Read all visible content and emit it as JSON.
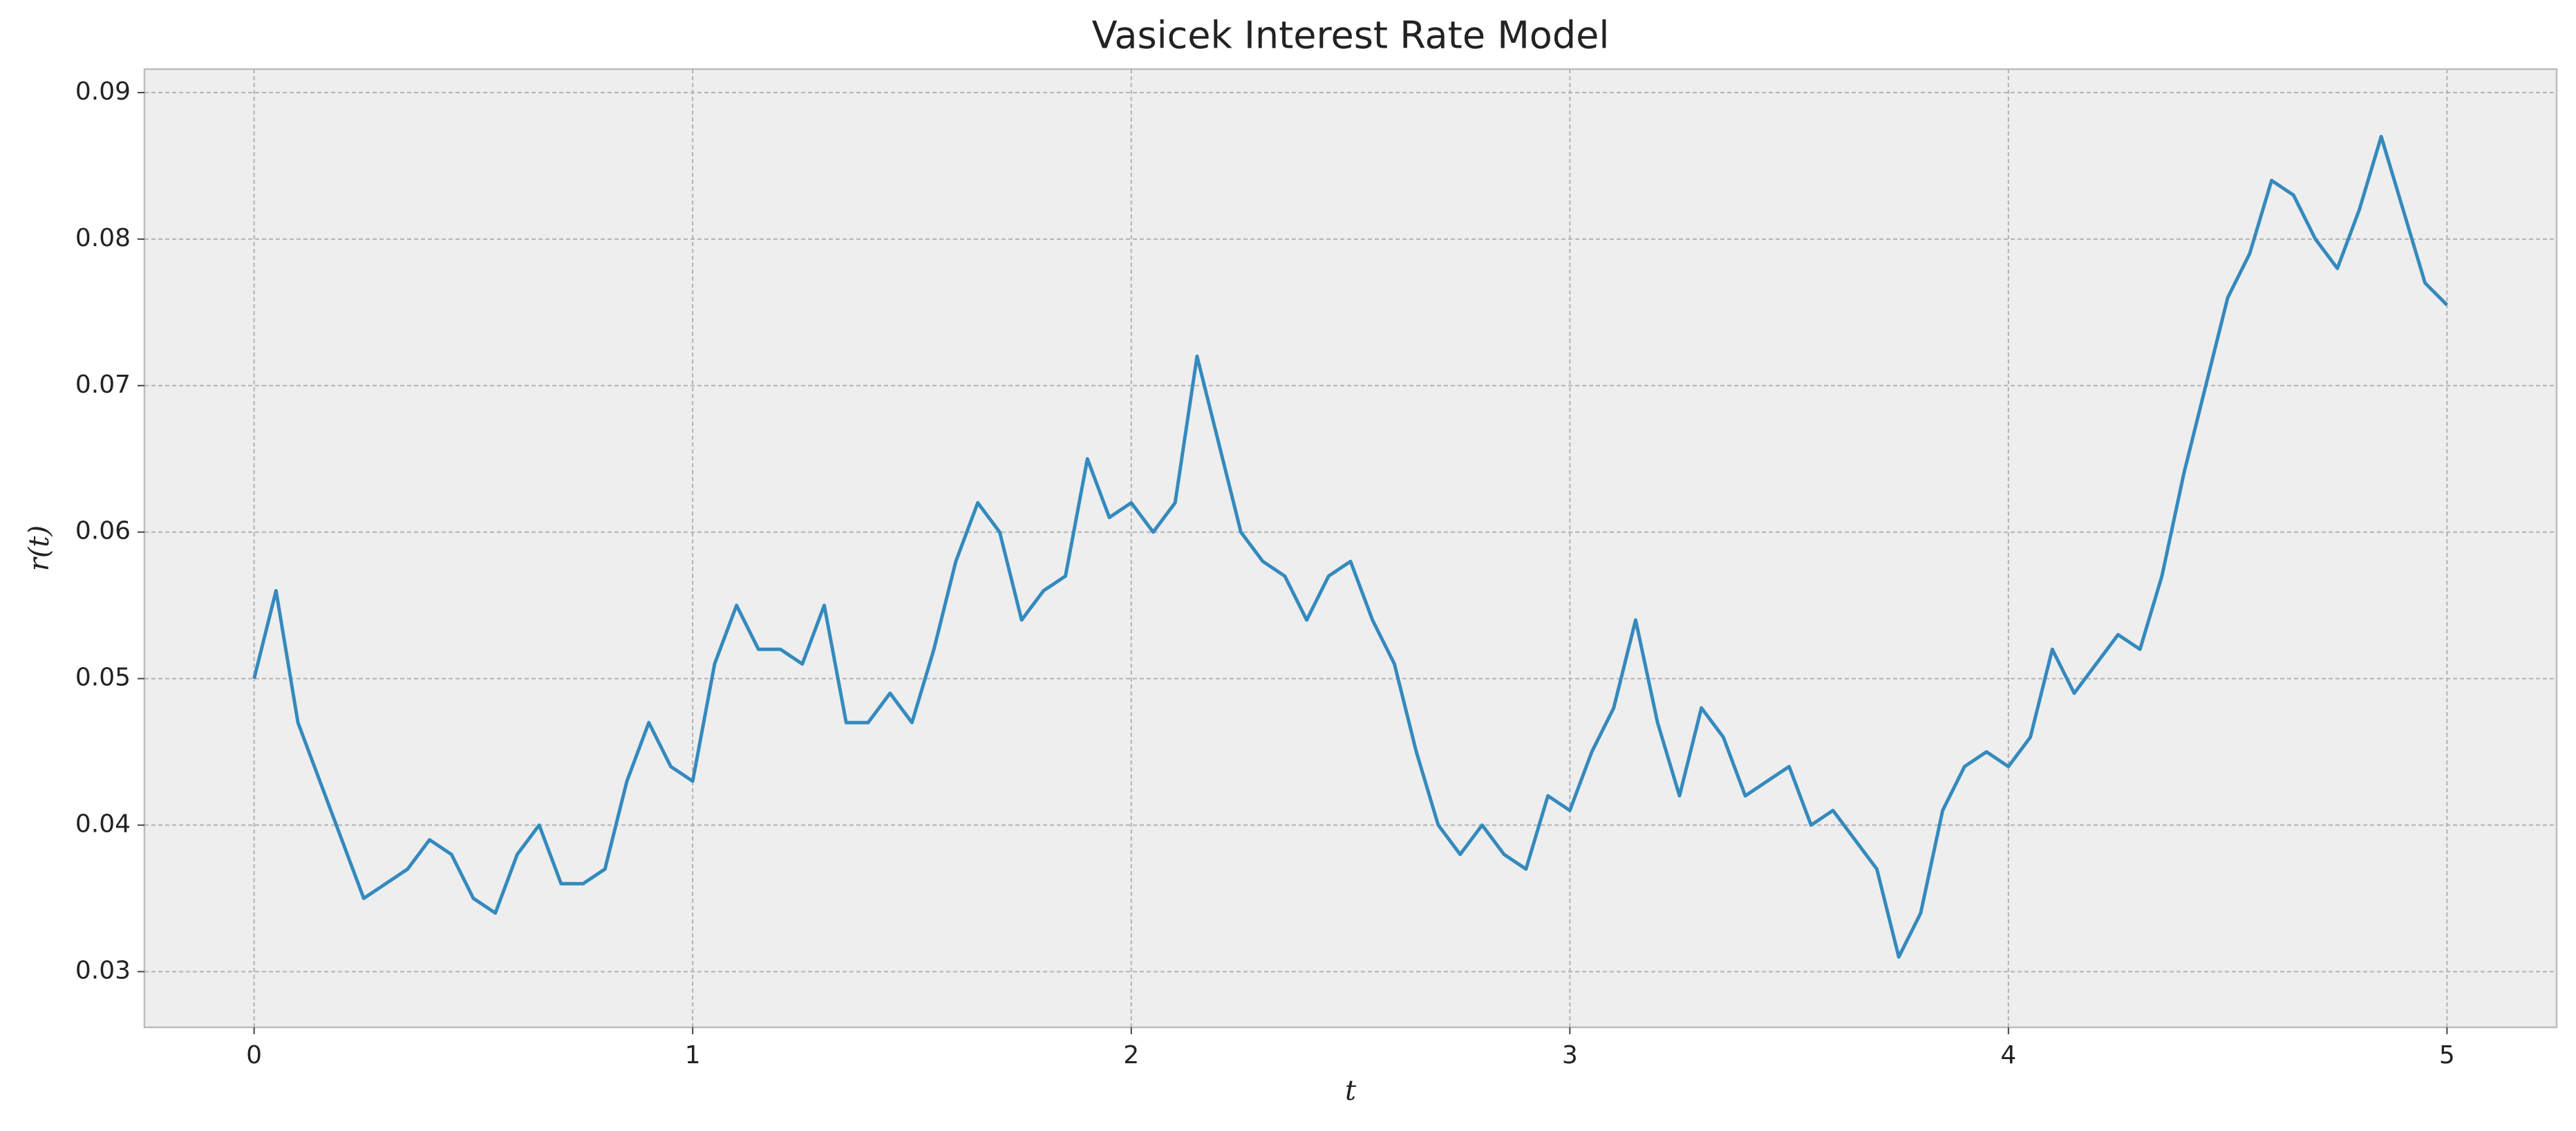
{
  "chart_data": {
    "type": "line",
    "title": "Vasicek Interest Rate Model",
    "x_label": "t",
    "y_label": "r(t)",
    "x": [
      0,
      0.05,
      0.1,
      0.15,
      0.2,
      0.25,
      0.3,
      0.35,
      0.4,
      0.45,
      0.5,
      0.55,
      0.6,
      0.65,
      0.7,
      0.75,
      0.8,
      0.85,
      0.9,
      0.95,
      1,
      1.05,
      1.1,
      1.15,
      1.2,
      1.25,
      1.3,
      1.35,
      1.4,
      1.45,
      1.5,
      1.55,
      1.6,
      1.65,
      1.7,
      1.75,
      1.8,
      1.85,
      1.9,
      1.95,
      2,
      2.05,
      2.1,
      2.15,
      2.2,
      2.25,
      2.3,
      2.35,
      2.4,
      2.45,
      2.5,
      2.55,
      2.6,
      2.65,
      2.7,
      2.75,
      2.8,
      2.85,
      2.9,
      2.95,
      3,
      3.05,
      3.1,
      3.15,
      3.2,
      3.25,
      3.3,
      3.35,
      3.4,
      3.45,
      3.5,
      3.55,
      3.6,
      3.65,
      3.7,
      3.75,
      3.8,
      3.85,
      3.9,
      3.95,
      4,
      4.05,
      4.1,
      4.15,
      4.2,
      4.25,
      4.3,
      4.35,
      4.4,
      4.45,
      4.5,
      4.55,
      4.6,
      4.65,
      4.7,
      4.75,
      4.8,
      4.85,
      4.9,
      4.95,
      5
    ],
    "values": [
      0.05,
      0.056,
      0.047,
      0.043,
      0.039,
      0.035,
      0.036,
      0.037,
      0.039,
      0.038,
      0.035,
      0.034,
      0.038,
      0.04,
      0.036,
      0.036,
      0.037,
      0.043,
      0.047,
      0.044,
      0.043,
      0.051,
      0.055,
      0.052,
      0.052,
      0.051,
      0.055,
      0.047,
      0.047,
      0.049,
      0.047,
      0.052,
      0.058,
      0.062,
      0.06,
      0.054,
      0.056,
      0.057,
      0.065,
      0.061,
      0.062,
      0.06,
      0.062,
      0.072,
      0.066,
      0.06,
      0.058,
      0.057,
      0.054,
      0.057,
      0.058,
      0.054,
      0.051,
      0.045,
      0.04,
      0.038,
      0.04,
      0.038,
      0.037,
      0.042,
      0.041,
      0.045,
      0.048,
      0.054,
      0.047,
      0.042,
      0.048,
      0.046,
      0.042,
      0.043,
      0.044,
      0.04,
      0.041,
      0.039,
      0.037,
      0.031,
      0.034,
      0.041,
      0.044,
      0.045,
      0.044,
      0.046,
      0.052,
      0.049,
      0.051,
      0.053,
      0.052,
      0.057,
      0.064,
      0.07,
      0.076,
      0.079,
      0.084,
      0.083,
      0.08,
      0.078,
      0.082,
      0.087,
      0.082,
      0.077,
      0.0755
    ],
    "color": "#348abd",
    "xlim": [
      -0.25,
      5.25
    ],
    "xticks": [
      0,
      1,
      2,
      3,
      4,
      5
    ],
    "ylim": [
      0.0262,
      0.0916
    ],
    "yticks": [
      0.03,
      0.04,
      0.05,
      0.06,
      0.07,
      0.08,
      0.09
    ],
    "grid": true
  }
}
